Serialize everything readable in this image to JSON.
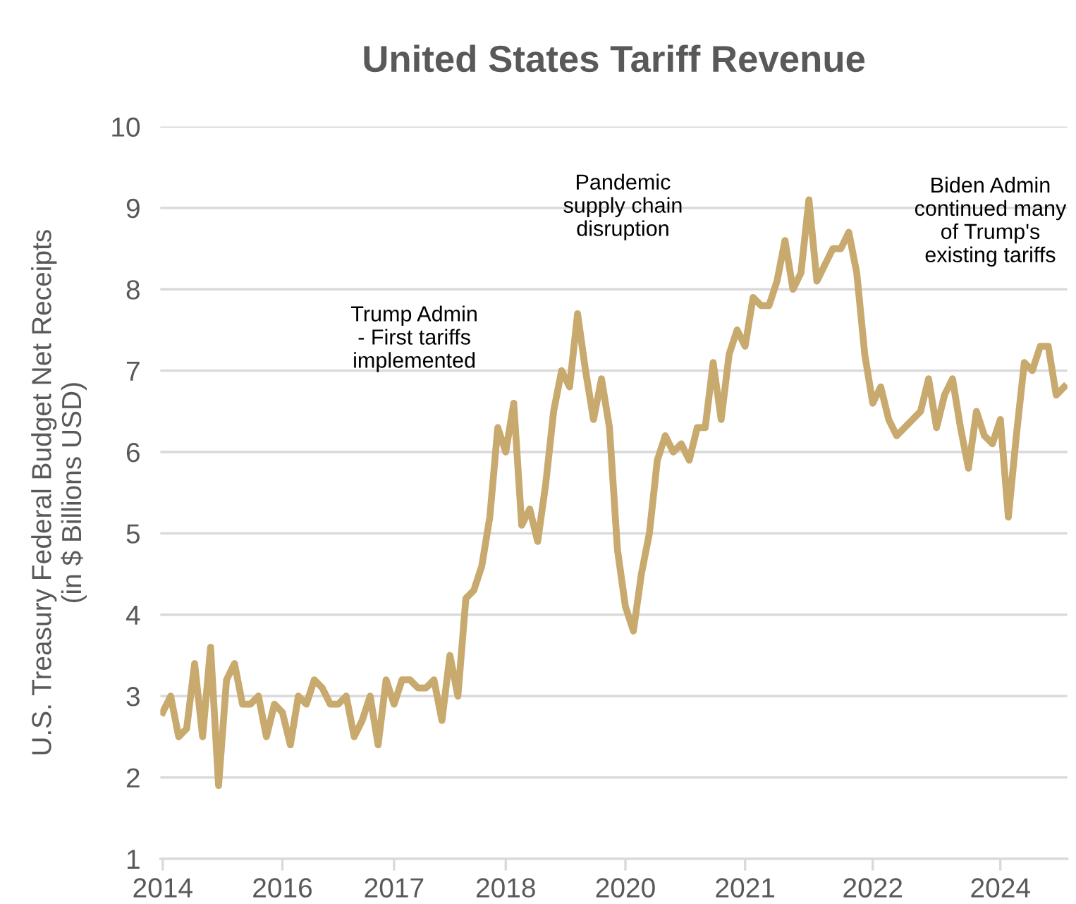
{
  "chart_data": {
    "type": "line",
    "title": "United States Tariff Revenue",
    "ylabel": "U.S. Treasury Federal Budget Net Receipts\n(in $ Billions USD)",
    "categories": [
      "2014",
      null,
      null,
      null,
      null,
      null,
      null,
      null,
      null,
      null,
      null,
      null,
      null,
      null,
      null,
      "2016",
      null,
      null,
      null,
      null,
      null,
      null,
      null,
      null,
      null,
      null,
      null,
      null,
      null,
      "2017",
      null,
      null,
      null,
      null,
      null,
      null,
      null,
      null,
      null,
      null,
      null,
      null,
      null,
      "2018",
      null,
      null,
      null,
      null,
      null,
      null,
      null,
      null,
      null,
      null,
      null,
      null,
      null,
      null,
      "2020",
      null,
      null,
      null,
      null,
      null,
      null,
      null,
      null,
      null,
      null,
      null,
      null,
      null,
      null,
      "2021",
      null,
      null,
      null,
      null,
      null,
      null,
      null,
      null,
      null,
      null,
      null,
      null,
      null,
      null,
      null,
      "2022",
      null,
      null,
      null,
      null,
      null,
      null,
      null,
      null,
      null,
      null,
      null,
      null,
      null,
      null,
      null,
      "2024",
      null,
      null,
      null,
      null,
      null,
      null,
      null,
      null
    ],
    "series": [
      {
        "color": "#c8a96e",
        "values": [
          2.8,
          3.0,
          2.5,
          2.6,
          3.4,
          2.5,
          3.6,
          1.9,
          3.2,
          3.4,
          2.9,
          2.9,
          3.0,
          2.5,
          2.9,
          2.8,
          2.4,
          3.0,
          2.9,
          3.2,
          3.1,
          2.9,
          2.9,
          3.0,
          2.5,
          2.7,
          3.0,
          2.4,
          3.2,
          2.9,
          3.2,
          3.2,
          3.1,
          3.1,
          3.2,
          2.7,
          3.5,
          3.0,
          4.2,
          4.3,
          4.6,
          5.2,
          6.3,
          6.0,
          6.6,
          5.1,
          5.3,
          4.9,
          5.6,
          6.5,
          7.0,
          6.8,
          7.7,
          7.0,
          6.4,
          6.9,
          6.3,
          4.8,
          4.1,
          3.8,
          4.5,
          5.0,
          5.9,
          6.2,
          6.0,
          6.1,
          5.9,
          6.3,
          6.3,
          7.1,
          6.4,
          7.2,
          7.5,
          7.3,
          7.9,
          7.8,
          7.8,
          8.1,
          8.6,
          8.0,
          8.2,
          9.1,
          8.1,
          8.3,
          8.5,
          8.5,
          8.7,
          8.2,
          7.2,
          6.6,
          6.8,
          6.4,
          6.2,
          6.3,
          6.4,
          6.5,
          6.9,
          6.3,
          6.7,
          6.9,
          6.3,
          5.8,
          6.5,
          6.2,
          6.1,
          6.4,
          5.2,
          6.2,
          7.1,
          7.0,
          7.3,
          7.3,
          6.7,
          6.8
        ]
      }
    ],
    "ylim": [
      1,
      10
    ],
    "yticks": [
      1,
      2,
      3,
      4,
      5,
      6,
      7,
      8,
      9,
      10
    ],
    "grid": "y",
    "marker": "none",
    "line_style": "solid",
    "annotations": [
      "Trump Admin\n- First tariffs\nimplemented",
      "Pandemic\nsupply chain\ndisruption",
      "Biden Admin\ncontinued many\nof Trump's\nexisting tariffs"
    ]
  }
}
